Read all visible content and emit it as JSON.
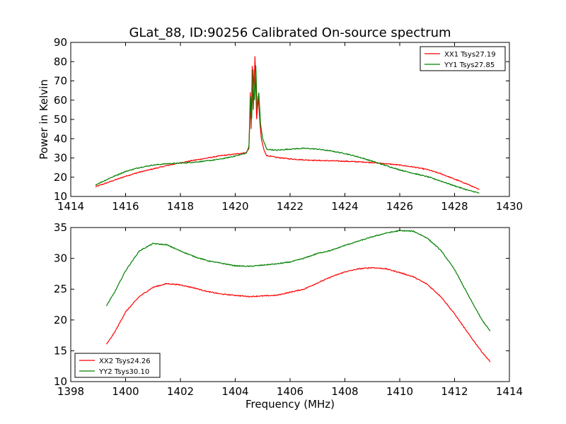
{
  "chart_data": [
    {
      "type": "line",
      "title": "GLat_88, ID:90256 Calibrated On-source spectrum",
      "xlabel": "",
      "ylabel": "Power in Kelvin",
      "xlim": [
        1414,
        1430
      ],
      "ylim": [
        10,
        90
      ],
      "x_ticks": [
        1414,
        1416,
        1418,
        1420,
        1422,
        1424,
        1426,
        1428,
        1430
      ],
      "y_ticks": [
        10,
        20,
        30,
        40,
        50,
        60,
        70,
        80,
        90
      ],
      "grid": false,
      "legend_position": "top-right",
      "series": [
        {
          "name": "XX1 Tsys27.19",
          "color": "#ff0000",
          "points": [
            [
              1414.9,
              15.0
            ],
            [
              1415.5,
              18.0
            ],
            [
              1416.0,
              20.5
            ],
            [
              1416.5,
              22.6
            ],
            [
              1417.0,
              24.3
            ],
            [
              1417.5,
              26.0
            ],
            [
              1418.0,
              27.5
            ],
            [
              1418.5,
              28.8
            ],
            [
              1419.0,
              30.0
            ],
            [
              1419.5,
              31.2
            ],
            [
              1420.0,
              32.0
            ],
            [
              1420.4,
              32.8
            ],
            [
              1420.5,
              35.0
            ],
            [
              1420.55,
              64.0
            ],
            [
              1420.58,
              45.0
            ],
            [
              1420.62,
              78.0
            ],
            [
              1420.66,
              55.0
            ],
            [
              1420.72,
              83.0
            ],
            [
              1420.78,
              50.0
            ],
            [
              1420.84,
              62.0
            ],
            [
              1420.9,
              48.0
            ],
            [
              1420.95,
              40.0
            ],
            [
              1421.05,
              34.0
            ],
            [
              1421.15,
              31.2
            ],
            [
              1421.5,
              30.3
            ],
            [
              1422.0,
              29.5
            ],
            [
              1422.5,
              29.0
            ],
            [
              1423.0,
              28.7
            ],
            [
              1423.5,
              28.5
            ],
            [
              1424.0,
              28.3
            ],
            [
              1424.5,
              28.0
            ],
            [
              1425.0,
              27.6
            ],
            [
              1425.5,
              27.0
            ],
            [
              1426.0,
              26.3
            ],
            [
              1426.5,
              25.3
            ],
            [
              1427.0,
              24.0
            ],
            [
              1427.5,
              21.8
            ],
            [
              1428.0,
              19.0
            ],
            [
              1428.5,
              16.2
            ],
            [
              1428.9,
              13.5
            ]
          ]
        },
        {
          "name": "YY1 Tsys27.85",
          "color": "#008000",
          "points": [
            [
              1414.9,
              16.0
            ],
            [
              1415.5,
              20.0
            ],
            [
              1416.0,
              23.0
            ],
            [
              1416.5,
              25.0
            ],
            [
              1417.0,
              26.3
            ],
            [
              1417.5,
              27.0
            ],
            [
              1418.0,
              27.3
            ],
            [
              1418.5,
              27.8
            ],
            [
              1419.0,
              28.5
            ],
            [
              1419.5,
              29.5
            ],
            [
              1420.0,
              31.0
            ],
            [
              1420.4,
              32.5
            ],
            [
              1420.5,
              36.0
            ],
            [
              1420.56,
              62.0
            ],
            [
              1420.6,
              50.0
            ],
            [
              1420.65,
              76.0
            ],
            [
              1420.7,
              60.0
            ],
            [
              1420.75,
              78.0
            ],
            [
              1420.8,
              55.0
            ],
            [
              1420.86,
              64.0
            ],
            [
              1420.92,
              48.0
            ],
            [
              1421.0,
              40.0
            ],
            [
              1421.15,
              34.5
            ],
            [
              1421.5,
              34.0
            ],
            [
              1422.0,
              34.6
            ],
            [
              1422.5,
              35.0
            ],
            [
              1423.0,
              34.6
            ],
            [
              1423.5,
              33.6
            ],
            [
              1424.0,
              32.3
            ],
            [
              1424.5,
              30.5
            ],
            [
              1425.0,
              28.3
            ],
            [
              1425.5,
              26.0
            ],
            [
              1426.0,
              23.8
            ],
            [
              1426.5,
              22.0
            ],
            [
              1427.0,
              20.3
            ],
            [
              1427.5,
              18.0
            ],
            [
              1428.0,
              15.5
            ],
            [
              1428.5,
              13.2
            ],
            [
              1428.9,
              11.8
            ]
          ]
        }
      ]
    },
    {
      "type": "line",
      "title": "",
      "xlabel": "Frequency (MHz)",
      "ylabel": "",
      "xlim": [
        1398,
        1414
      ],
      "ylim": [
        10,
        35
      ],
      "x_ticks": [
        1398,
        1400,
        1402,
        1404,
        1406,
        1408,
        1410,
        1412,
        1414
      ],
      "y_ticks": [
        10,
        15,
        20,
        25,
        30,
        35
      ],
      "grid": false,
      "legend_position": "bottom-left",
      "series": [
        {
          "name": "XX2 Tsys24.26",
          "color": "#ff0000",
          "points": [
            [
              1399.3,
              16.0
            ],
            [
              1399.6,
              18.0
            ],
            [
              1400.0,
              21.3
            ],
            [
              1400.5,
              23.8
            ],
            [
              1401.0,
              25.3
            ],
            [
              1401.5,
              25.9
            ],
            [
              1402.0,
              25.7
            ],
            [
              1402.5,
              25.2
            ],
            [
              1403.0,
              24.6
            ],
            [
              1403.5,
              24.2
            ],
            [
              1404.0,
              24.0
            ],
            [
              1404.5,
              23.8
            ],
            [
              1405.0,
              23.9
            ],
            [
              1405.5,
              24.0
            ],
            [
              1406.0,
              24.5
            ],
            [
              1406.5,
              25.0
            ],
            [
              1407.0,
              26.0
            ],
            [
              1407.5,
              27.0
            ],
            [
              1408.0,
              27.8
            ],
            [
              1408.5,
              28.3
            ],
            [
              1409.0,
              28.5
            ],
            [
              1409.5,
              28.3
            ],
            [
              1410.0,
              27.7
            ],
            [
              1410.5,
              27.0
            ],
            [
              1411.0,
              25.8
            ],
            [
              1411.5,
              23.8
            ],
            [
              1412.0,
              21.0
            ],
            [
              1412.5,
              17.8
            ],
            [
              1413.0,
              14.8
            ],
            [
              1413.3,
              13.2
            ]
          ]
        },
        {
          "name": "YY2 Tsys30.10",
          "color": "#008000",
          "points": [
            [
              1399.3,
              22.3
            ],
            [
              1399.6,
              24.5
            ],
            [
              1400.0,
              28.0
            ],
            [
              1400.5,
              31.2
            ],
            [
              1401.0,
              32.4
            ],
            [
              1401.5,
              32.2
            ],
            [
              1402.0,
              31.2
            ],
            [
              1402.5,
              30.3
            ],
            [
              1403.0,
              29.6
            ],
            [
              1403.5,
              29.2
            ],
            [
              1404.0,
              28.8
            ],
            [
              1404.5,
              28.7
            ],
            [
              1405.0,
              28.9
            ],
            [
              1405.5,
              29.1
            ],
            [
              1406.0,
              29.4
            ],
            [
              1406.5,
              30.0
            ],
            [
              1407.0,
              30.8
            ],
            [
              1407.5,
              31.3
            ],
            [
              1408.0,
              32.1
            ],
            [
              1408.5,
              32.8
            ],
            [
              1409.0,
              33.5
            ],
            [
              1409.5,
              34.1
            ],
            [
              1410.0,
              34.5
            ],
            [
              1410.5,
              34.4
            ],
            [
              1411.0,
              33.3
            ],
            [
              1411.5,
              31.3
            ],
            [
              1412.0,
              28.2
            ],
            [
              1412.5,
              24.0
            ],
            [
              1413.0,
              20.0
            ],
            [
              1413.3,
              18.2
            ]
          ]
        }
      ]
    }
  ]
}
